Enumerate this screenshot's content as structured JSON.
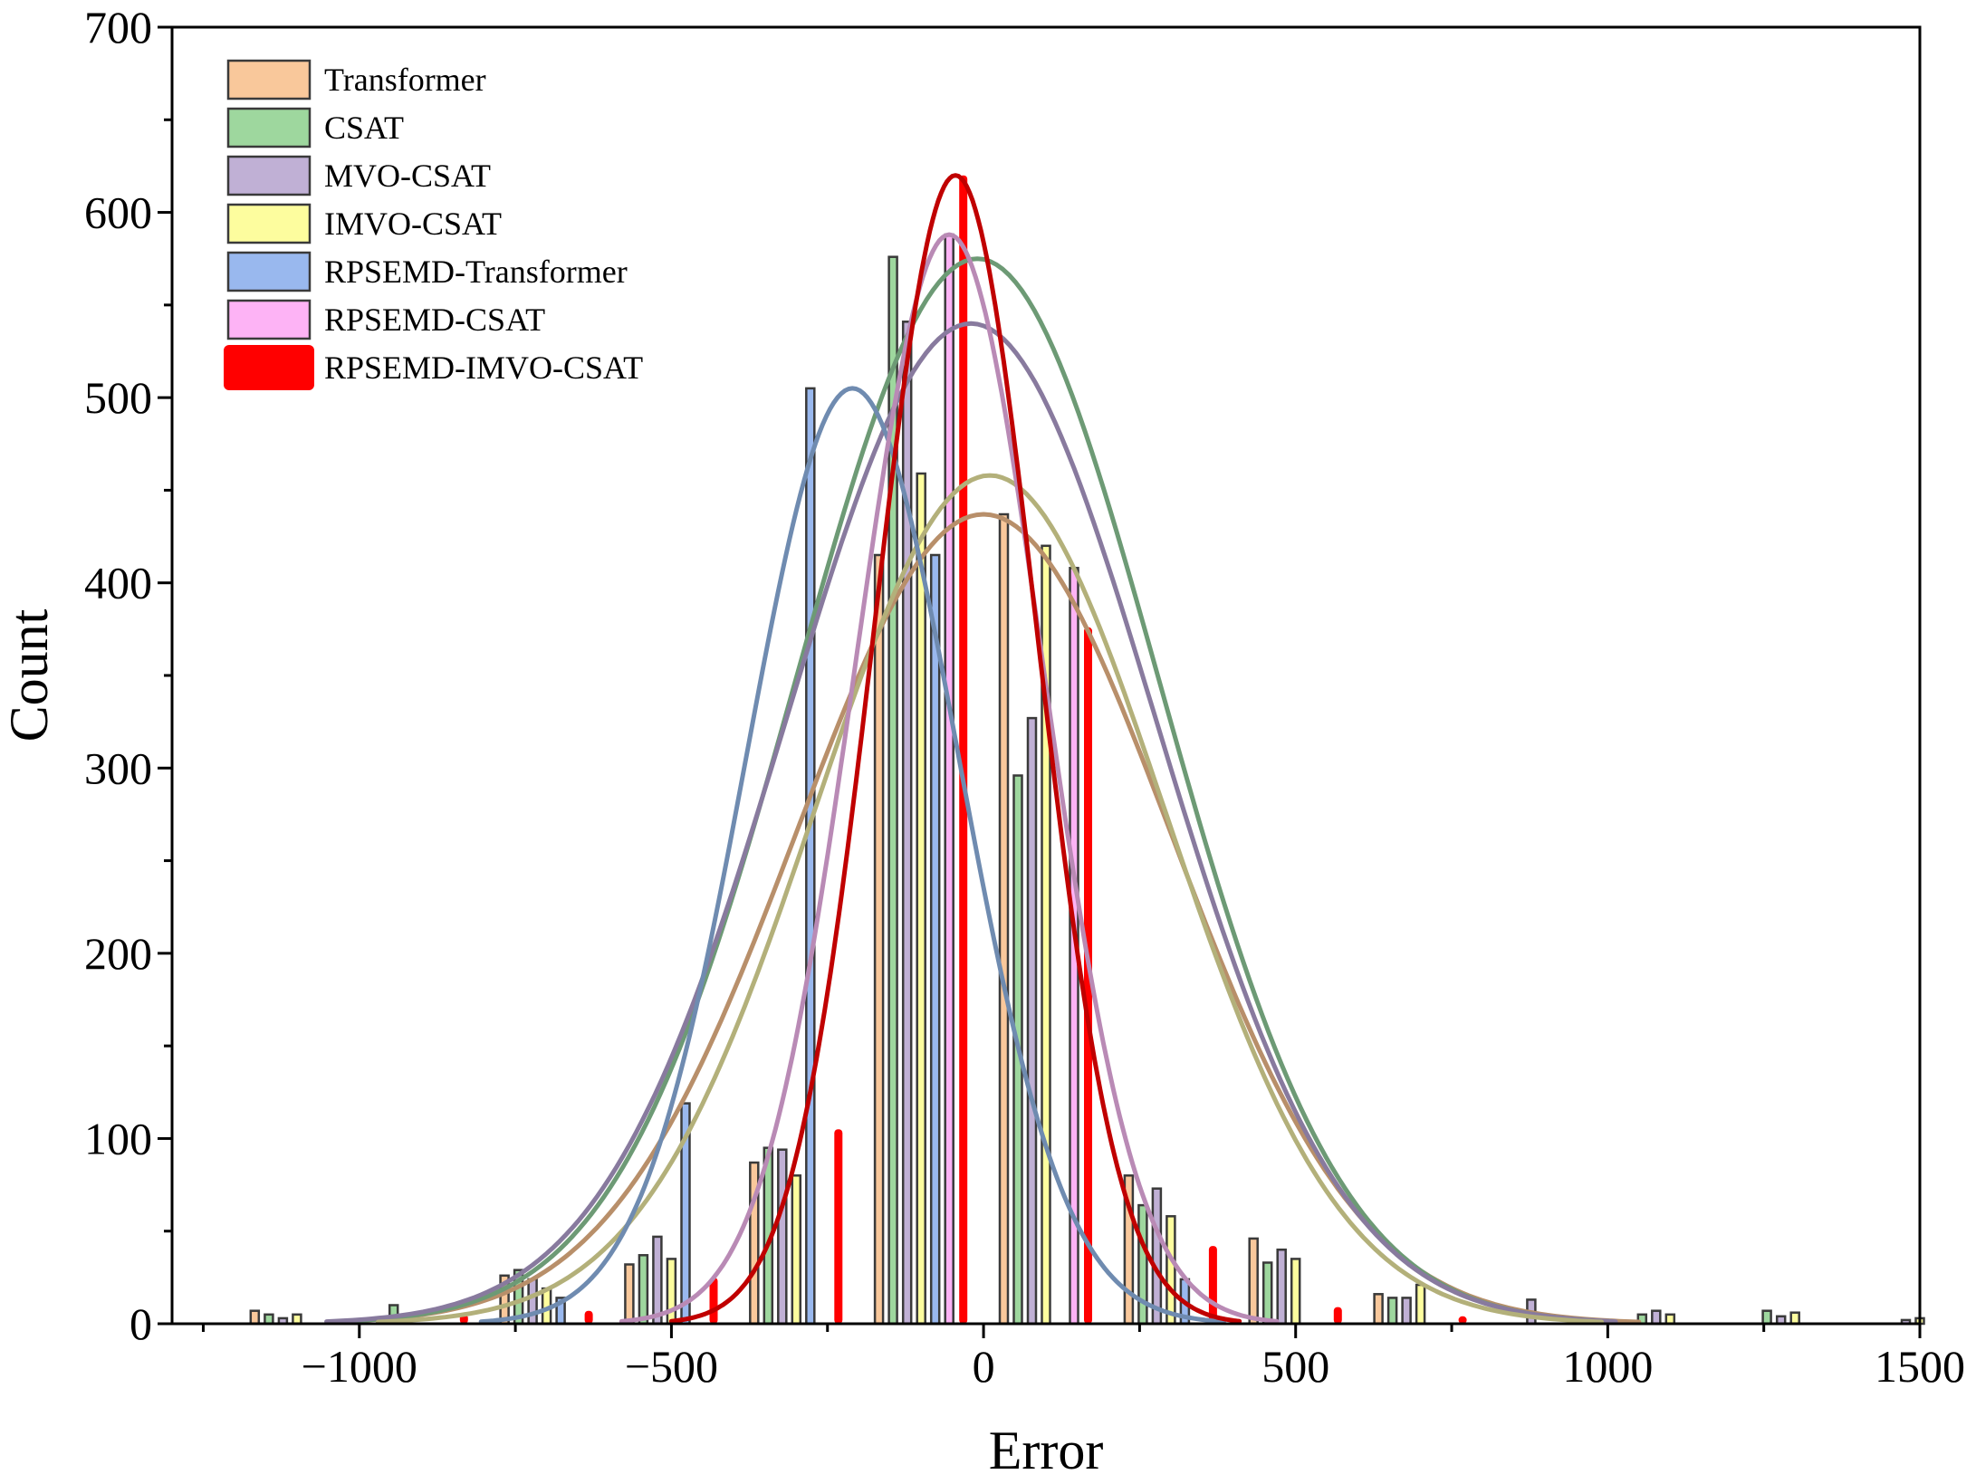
{
  "chart_data": {
    "type": "bar",
    "title": "",
    "xlabel": "Error",
    "ylabel": "Count",
    "xlim": [
      -1300,
      1500
    ],
    "ylim": [
      0,
      700
    ],
    "x_ticks": [
      -1000,
      -500,
      0,
      500,
      1000,
      1500
    ],
    "x_tick_labels": [
      "−1000",
      "−500",
      "0",
      "500",
      "1000",
      "1500"
    ],
    "y_ticks": [
      0,
      100,
      200,
      300,
      400,
      500,
      600,
      700
    ],
    "y_tick_labels": [
      "0",
      "100",
      "200",
      "300",
      "400",
      "500",
      "600",
      "700"
    ],
    "legend_position": "top-left",
    "bin_centers": [
      -1100,
      -900,
      -700,
      -500,
      -300,
      -100,
      100,
      300,
      500,
      700,
      900,
      1100,
      1300,
      1500
    ],
    "series": [
      {
        "name": "Transformer",
        "color": "#f9c89b",
        "kind": "bar",
        "values": [
          7,
          0,
          26,
          32,
          87,
          415,
          437,
          80,
          46,
          16,
          0,
          0,
          0,
          0
        ],
        "fit": {
          "mean": 0,
          "sd": 300,
          "peak": 437,
          "color": "#b88f6a"
        }
      },
      {
        "name": "CSAT",
        "color": "#9ed79e",
        "kind": "bar",
        "values": [
          5,
          10,
          29,
          37,
          95,
          576,
          296,
          64,
          33,
          14,
          0,
          5,
          7,
          0
        ],
        "fit": {
          "mean": -10,
          "sd": 290,
          "peak": 575,
          "color": "#6d9a75"
        }
      },
      {
        "name": "MVO-CSAT",
        "color": "#c0b0d5",
        "kind": "bar",
        "values": [
          3,
          0,
          24,
          47,
          94,
          541,
          327,
          73,
          40,
          14,
          13,
          7,
          4,
          2
        ],
        "fit": {
          "mean": -20,
          "sd": 295,
          "peak": 540,
          "color": "#887a9e"
        }
      },
      {
        "name": "IMVO-CSAT",
        "color": "#fdfd9e",
        "kind": "bar",
        "values": [
          5,
          0,
          19,
          35,
          80,
          459,
          420,
          58,
          35,
          21,
          0,
          5,
          6,
          3
        ],
        "fit": {
          "mean": 10,
          "sd": 280,
          "peak": 458,
          "color": "#b3b07a"
        }
      },
      {
        "name": "RPSEMD-Transformer",
        "color": "#99b8ee",
        "kind": "bar",
        "values": [
          0,
          0,
          14,
          119,
          505,
          415,
          0,
          24,
          0,
          0,
          0,
          0,
          0,
          0
        ],
        "fit": {
          "mean": -210,
          "sd": 170,
          "peak": 505,
          "color": "#6f8bb0"
        }
      },
      {
        "name": "RPSEMD-CSAT",
        "color": "#fdb3f5",
        "kind": "bar",
        "values": [
          0,
          0,
          0,
          0,
          0,
          588,
          408,
          0,
          0,
          0,
          0,
          0,
          0,
          0
        ],
        "fit": {
          "mean": -55,
          "sd": 150,
          "peak": 588,
          "color": "#b98ab5"
        }
      },
      {
        "name": "RPSEMD-IMVO-CSAT",
        "color": "#ff0000",
        "kind": "bar-solid",
        "values": [
          0,
          5,
          7,
          25,
          105,
          620,
          376,
          42,
          9,
          4,
          0,
          0,
          0,
          0
        ],
        "fit": {
          "mean": -45,
          "sd": 130,
          "peak": 620,
          "color": "#c00000"
        }
      }
    ]
  }
}
